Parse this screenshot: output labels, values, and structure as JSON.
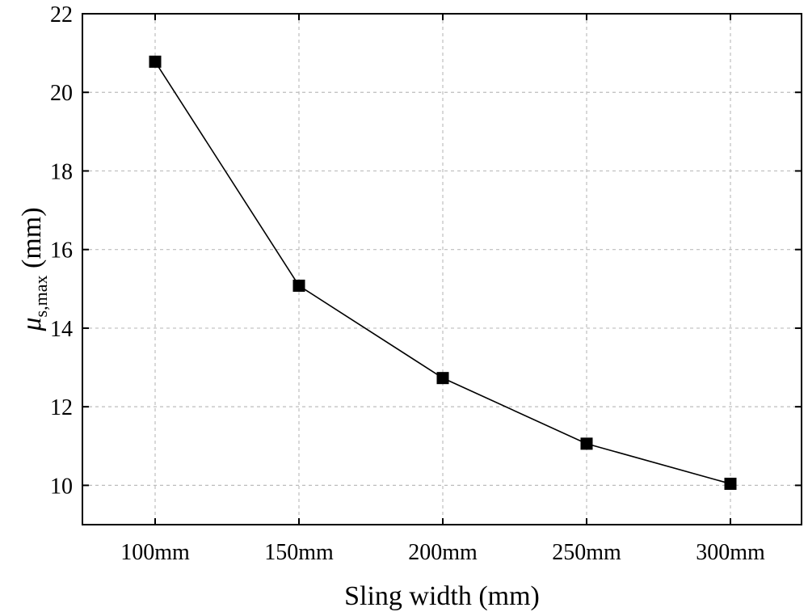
{
  "chart_data": {
    "type": "line",
    "title": "",
    "xlabel": "Sling width (mm)",
    "ylabel": {
      "symbol": "μ",
      "subscript": "s,max",
      "unit": " (mm)"
    },
    "categories": [
      "100mm",
      "150mm",
      "200mm",
      "250mm",
      "300mm"
    ],
    "series": [
      {
        "values": [
          20.78,
          15.08,
          12.73,
          11.06,
          10.04
        ]
      }
    ],
    "ylim": [
      9,
      22
    ],
    "yticks": [
      10,
      12,
      14,
      16,
      18,
      20,
      22
    ],
    "grid": true,
    "legend": "none"
  }
}
